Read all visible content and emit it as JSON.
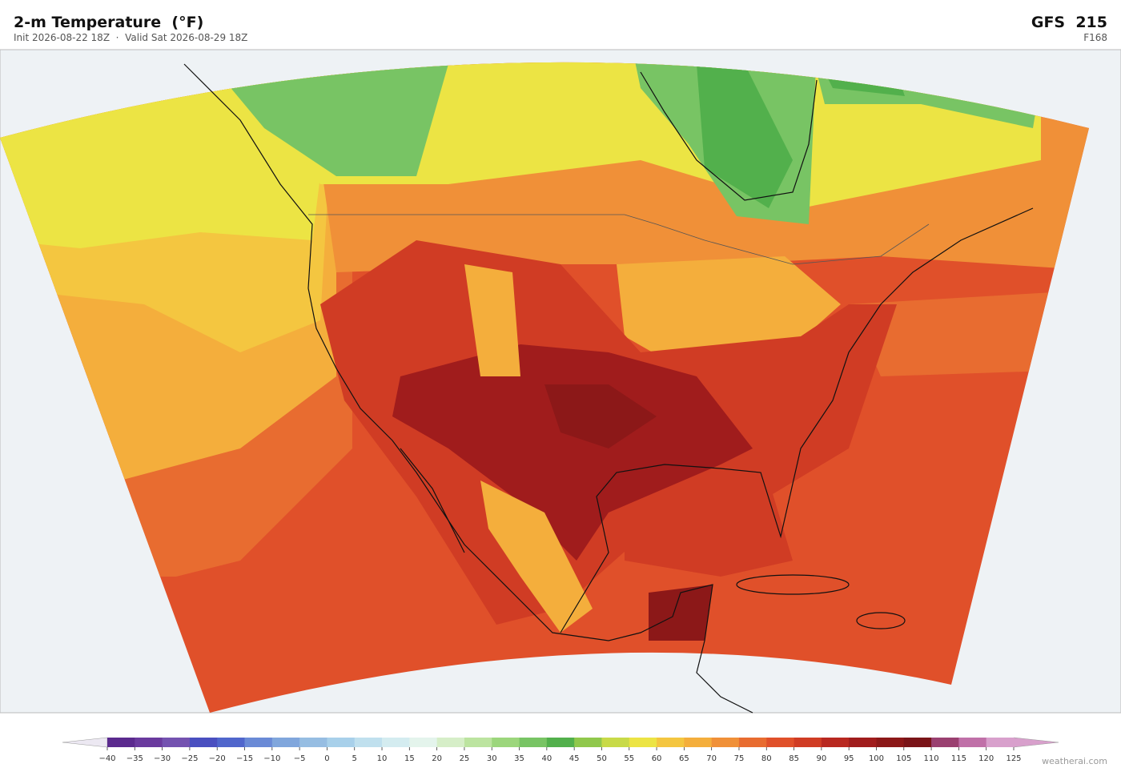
{
  "header": {
    "title": "2-m Temperature  (°F)",
    "subtitle": "Init 2026-08-22 18Z  ·  Valid Sat 2026-08-29 18Z",
    "model": "GFS  215",
    "forecast_hour": "F168"
  },
  "colorbar": {
    "lim": [
      -40,
      125
    ],
    "ticks": [
      {
        "value": -40,
        "label": "−40"
      },
      {
        "value": -35,
        "label": "−35"
      },
      {
        "value": -30,
        "label": "−30"
      },
      {
        "value": -25,
        "label": "−25"
      },
      {
        "value": -20,
        "label": "−20"
      },
      {
        "value": -15,
        "label": "−15"
      },
      {
        "value": -10,
        "label": "−10"
      },
      {
        "value": -5,
        "label": "−5"
      },
      0,
      5,
      10,
      15,
      20,
      25,
      30,
      35,
      40,
      45,
      50,
      55,
      60,
      65,
      70,
      75,
      80,
      85,
      90,
      95,
      100,
      105,
      110,
      115,
      120,
      125
    ],
    "colors": [
      "#5b2a8e",
      "#6a3a9e",
      "#7452b0",
      "#4a4fc0",
      "#5066cc",
      "#6a8ad6",
      "#80a6dc",
      "#96bde2",
      "#a8d0ea",
      "#c0e0ee",
      "#d4ecf0",
      "#e4f4ec",
      "#d6eec8",
      "#bce4a0",
      "#9cd67c",
      "#78c464",
      "#52b04c",
      "#90c84c",
      "#c8da48",
      "#ece444",
      "#f4c640",
      "#f4ae3c",
      "#f09038",
      "#e86c30",
      "#e0502a",
      "#d03c24",
      "#b82820",
      "#a01c1c",
      "#8c1818",
      "#7a1418",
      "#9a4070",
      "#c070a8",
      "#d8a0cc"
    ],
    "extend_colors": [
      "#ece8f2",
      "#d8a0cc"
    ]
  },
  "footer": {
    "watermark": "weatherai.com"
  }
}
